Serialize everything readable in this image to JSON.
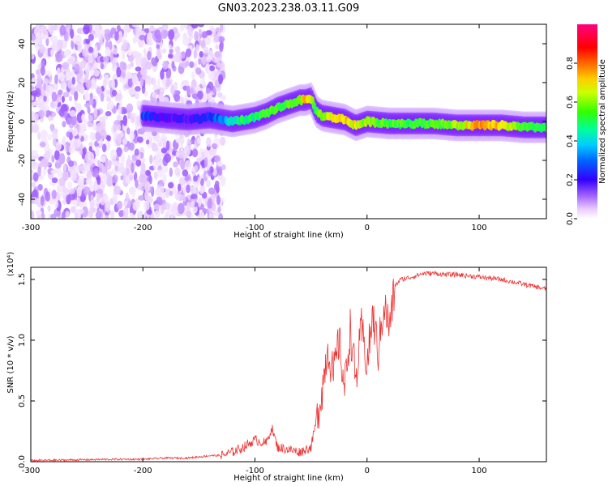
{
  "figure_title": "GN03.2023.238.03.11.G09",
  "chart_data": [
    {
      "type": "heatmap",
      "xlabel": "Height of straight line (km)",
      "ylabel": "Frequency (Hz)",
      "xlim": [
        -300,
        160
      ],
      "ylim": [
        -50,
        50
      ],
      "xticks": [
        -300,
        -200,
        -100,
        0,
        100
      ],
      "yticks": [
        -40,
        -20,
        0,
        20,
        40
      ],
      "colorbar": {
        "label": "Normalized spectral amplitude",
        "range": [
          0,
          1
        ],
        "ticks": [
          "0.0",
          "0.2",
          "0.4",
          "0.6",
          "0.8"
        ],
        "colormap": [
          "#ffffff",
          "#e8ccff",
          "#a060ff",
          "#6a00ff",
          "#0033ff",
          "#00ccff",
          "#00ff66",
          "#66ff00",
          "#ffee00",
          "#ff6600",
          "#ff0000",
          "#ff0077"
        ]
      },
      "ridge": {
        "x": [
          -200,
          -180,
          -160,
          -140,
          -130,
          -120,
          -110,
          -100,
          -90,
          -80,
          -70,
          -60,
          -55,
          -50,
          -45,
          -40,
          -30,
          -20,
          -10,
          0,
          20,
          40,
          60,
          80,
          100,
          120,
          140,
          160
        ],
        "y": [
          3,
          2,
          1,
          2,
          1,
          0,
          1,
          2,
          4,
          7,
          9,
          11,
          11,
          12,
          5,
          3,
          2,
          1,
          -2,
          0,
          -1,
          -1,
          -1,
          -2,
          -2,
          -2,
          -3,
          -3
        ],
        "amplitude": [
          0.35,
          0.3,
          0.3,
          0.35,
          0.4,
          0.5,
          0.55,
          0.55,
          0.6,
          0.6,
          0.6,
          0.6,
          0.8,
          0.65,
          0.55,
          0.65,
          0.7,
          0.75,
          0.7,
          0.65,
          0.6,
          0.6,
          0.6,
          0.65,
          0.8,
          0.75,
          0.6,
          0.55
        ]
      },
      "noise_region_x": [
        -300,
        -128
      ]
    },
    {
      "type": "line",
      "xlabel": "Height of straight line (km)",
      "ylabel": "SNR (10 * v/v)",
      "y_multiplier": "(x10⁴)",
      "xlim": [
        -300,
        160
      ],
      "ylim": [
        0,
        1.6
      ],
      "xticks": [
        -300,
        -200,
        -100,
        0,
        100
      ],
      "yticks": [
        "0.0",
        "0.5",
        "1.0",
        "1.5"
      ],
      "series": [
        {
          "color": "#ee3333",
          "x": [
            -300,
            -260,
            -220,
            -200,
            -180,
            -160,
            -140,
            -130,
            -120,
            -110,
            -100,
            -90,
            -85,
            -80,
            -70,
            -60,
            -50,
            -45,
            -40,
            -35,
            -30,
            -25,
            -20,
            -15,
            -10,
            -5,
            0,
            5,
            10,
            15,
            20,
            25,
            30,
            40,
            50,
            60,
            70,
            80,
            90,
            100,
            120,
            140,
            160
          ],
          "y": [
            0.01,
            0.015,
            0.02,
            0.02,
            0.03,
            0.03,
            0.05,
            0.05,
            0.08,
            0.12,
            0.18,
            0.15,
            0.28,
            0.12,
            0.1,
            0.08,
            0.12,
            0.35,
            0.6,
            0.95,
            0.7,
            1.0,
            0.6,
            1.1,
            0.65,
            1.1,
            0.8,
            1.2,
            0.9,
            1.3,
            1.1,
            1.45,
            1.5,
            1.52,
            1.55,
            1.55,
            1.54,
            1.54,
            1.53,
            1.52,
            1.5,
            1.46,
            1.42
          ]
        }
      ]
    }
  ]
}
